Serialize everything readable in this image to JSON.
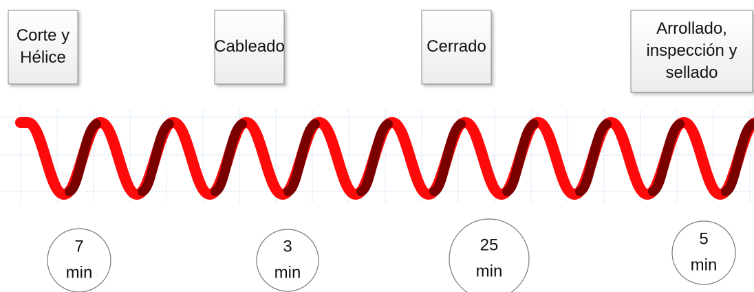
{
  "steps": [
    {
      "label": [
        "Corte y",
        "Hélice"
      ],
      "time": [
        "7",
        "min"
      ]
    },
    {
      "label": [
        "Cableado"
      ],
      "time": [
        "3",
        "min"
      ]
    },
    {
      "label": [
        "Cerrado"
      ],
      "time": [
        "25",
        "min"
      ]
    },
    {
      "label": [
        "Arrollado,",
        "inspección y",
        "sellado"
      ],
      "time": [
        "5",
        "min"
      ]
    }
  ]
}
